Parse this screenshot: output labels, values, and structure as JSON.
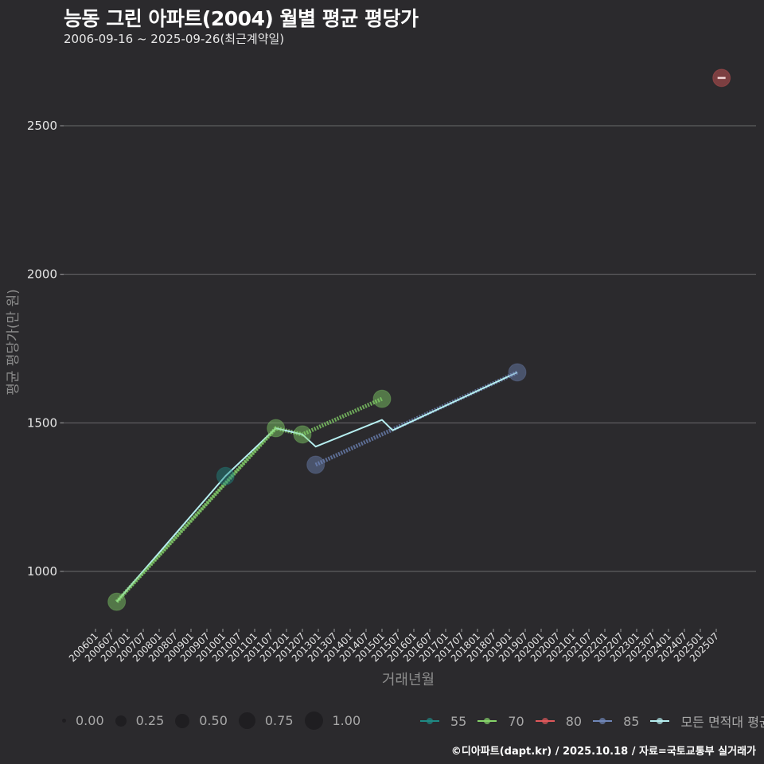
{
  "header": {
    "title": "능동 그린 아파트(2004) 월별 평균 평당가",
    "subtitle": "2006-09-16 ~ 2025-09-26(최근계약일)"
  },
  "footer": {
    "credit": "©디아파트(dapt.kr) / 2025.10.18 / 자료=국토교통부 실거래가"
  },
  "legend": {
    "size": [
      {
        "label": "0.00",
        "d": 5
      },
      {
        "label": "0.25",
        "d": 14
      },
      {
        "label": "0.50",
        "d": 18
      },
      {
        "label": "0.75",
        "d": 21
      },
      {
        "label": "1.00",
        "d": 23
      }
    ],
    "color": [
      {
        "label": "55",
        "color": "#1f8a84"
      },
      {
        "label": "70",
        "color": "#86d46a"
      },
      {
        "label": "80",
        "color": "#e0585b"
      },
      {
        "label": "85",
        "color": "#6f86b8"
      },
      {
        "label": "모든 면적대 평균값",
        "color": "#b6eef0"
      }
    ]
  },
  "chart_data": {
    "type": "line",
    "title": "능동 그린 아파트(2004) 월별 평균 평당가",
    "subtitle": "2006-09-16 ~ 2025-09-26(최근계약일)",
    "xlabel": "거래년월",
    "ylabel": "평균 평당가(만 원)",
    "ylim": [
      800,
      2800
    ],
    "yticks": [
      1000,
      1500,
      2000,
      2500
    ],
    "grid": true,
    "legend_position": "bottom",
    "xticks": [
      "200601",
      "200607",
      "200701",
      "200707",
      "200801",
      "200807",
      "200901",
      "200907",
      "201001",
      "201007",
      "201101",
      "201107",
      "201201",
      "201207",
      "201301",
      "201307",
      "201401",
      "201407",
      "201501",
      "201507",
      "201601",
      "201607",
      "201701",
      "201707",
      "201801",
      "201807",
      "201901",
      "201907",
      "202001",
      "202007",
      "202101",
      "202107",
      "202201",
      "202207",
      "202301",
      "202307",
      "202401",
      "202407",
      "202501",
      "202507"
    ],
    "series": [
      {
        "name": "55",
        "color": "#1f8a84",
        "points": [
          {
            "x": "201002",
            "y": 1321
          }
        ]
      },
      {
        "name": "70",
        "color": "#86d46a",
        "points": [
          {
            "x": "200609",
            "y": 898
          },
          {
            "x": "201109",
            "y": 1482
          },
          {
            "x": "201207",
            "y": 1461
          },
          {
            "x": "201501",
            "y": 1581
          }
        ]
      },
      {
        "name": "80",
        "color": "#e0585b",
        "points": [
          {
            "x": "202509",
            "y": 2661
          }
        ]
      },
      {
        "name": "85",
        "color": "#6f86b8",
        "points": [
          {
            "x": "201212",
            "y": 1359
          },
          {
            "x": "201904",
            "y": 1670
          }
        ]
      },
      {
        "name": "모든 면적대 평균값",
        "color": "#b6eef0",
        "points": [
          {
            "x": "200609",
            "y": 898
          },
          {
            "x": "201002",
            "y": 1321
          },
          {
            "x": "201109",
            "y": 1482
          },
          {
            "x": "201207",
            "y": 1461
          },
          {
            "x": "201212",
            "y": 1420
          },
          {
            "x": "201501",
            "y": 1510
          },
          {
            "x": "201505",
            "y": 1475
          },
          {
            "x": "201904",
            "y": 1670
          }
        ]
      }
    ]
  }
}
